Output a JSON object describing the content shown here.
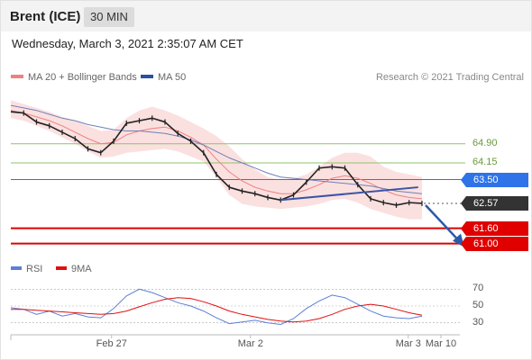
{
  "header": {
    "symbol": "Brent (ICE)",
    "timeframe": "30 MIN"
  },
  "timestamp": "Wednesday, March 3, 2021 2:35:07 AM CET",
  "legend": {
    "items": [
      {
        "label": "MA 20 + Bollinger Bands",
        "color": "#f08080"
      },
      {
        "label": "MA 50",
        "color": "#2b4f9e"
      }
    ],
    "credit": "Research © 2021 Trading Central"
  },
  "rsi_legend": {
    "items": [
      {
        "label": "RSI",
        "color": "#5b7fd6"
      },
      {
        "label": "9MA",
        "color": "#e01010"
      }
    ]
  },
  "chart_data": [
    {
      "type": "line",
      "name": "price",
      "x": [
        "Feb 26 10:00",
        "Feb 26 12:00",
        "Feb 26 14:00",
        "Feb 26 16:00",
        "Feb 26 18:00",
        "Feb 26 20:00",
        "Feb 26 22:00",
        "Feb 27",
        "Feb 27 02:00",
        "Feb 27 04:00",
        "Feb 27 06:00",
        "Feb 27 08:00",
        "Feb 27 10:00",
        "Feb 27 12:00",
        "Feb 27 14:00",
        "Feb 27 16:00",
        "Feb 27 18:00",
        "Feb 27 20:00",
        "Feb 27 22:00",
        "Mar 2",
        "Mar 2 02:00",
        "Mar 2 04:00",
        "Mar 2 06:00",
        "Mar 2 08:00",
        "Mar 2 10:00",
        "Mar 2 12:00",
        "Mar 2 14:00",
        "Mar 2 16:00",
        "Mar 2 18:00",
        "Mar 2 20:00",
        "Mar 2 22:00",
        "Mar 3",
        "Mar 3 02:00"
      ],
      "series": [
        {
          "name": "Price",
          "values": [
            66.15,
            66.1,
            65.75,
            65.6,
            65.35,
            65.1,
            64.7,
            64.55,
            65.0,
            65.7,
            65.8,
            65.9,
            65.75,
            65.3,
            65.0,
            64.55,
            63.7,
            63.2,
            63.05,
            62.95,
            62.8,
            62.7,
            62.9,
            63.4,
            63.95,
            64.0,
            63.95,
            63.3,
            62.75,
            62.6,
            62.5,
            62.6,
            62.57
          ]
        },
        {
          "name": "MA 20",
          "values": [
            66.2,
            66.1,
            65.95,
            65.8,
            65.6,
            65.35,
            65.1,
            64.9,
            64.95,
            65.25,
            65.4,
            65.5,
            65.55,
            65.4,
            65.15,
            64.85,
            64.3,
            63.8,
            63.45,
            63.2,
            63.05,
            62.95,
            62.95,
            63.1,
            63.3,
            63.55,
            63.65,
            63.55,
            63.35,
            63.1,
            62.9,
            62.8,
            62.75
          ]
        },
        {
          "name": "MA 50",
          "values": [
            66.4,
            66.3,
            66.2,
            66.05,
            65.9,
            65.8,
            65.65,
            65.55,
            65.45,
            65.4,
            65.4,
            65.35,
            65.3,
            65.2,
            65.05,
            64.85,
            64.6,
            64.35,
            64.15,
            63.95,
            63.75,
            63.6,
            63.55,
            63.5,
            63.45,
            63.4,
            63.35,
            63.3,
            63.25,
            63.15,
            63.05,
            63.0,
            62.95
          ]
        }
      ],
      "bollinger": {
        "upper": [
          66.6,
          66.45,
          66.3,
          66.15,
          65.95,
          65.8,
          65.6,
          65.4,
          65.45,
          65.9,
          66.2,
          66.35,
          66.2,
          66.0,
          65.75,
          65.5,
          65.2,
          64.8,
          64.3,
          63.9,
          63.6,
          63.5,
          63.55,
          63.7,
          64.0,
          64.35,
          64.55,
          64.55,
          64.4,
          64.0,
          63.8,
          63.7,
          63.6
        ],
        "lower": [
          65.9,
          65.8,
          65.6,
          65.4,
          65.15,
          64.9,
          64.6,
          64.35,
          64.4,
          64.55,
          64.6,
          64.65,
          64.7,
          64.6,
          64.4,
          64.2,
          63.6,
          62.9,
          62.55,
          62.45,
          62.4,
          62.35,
          62.4,
          62.45,
          62.55,
          62.7,
          62.75,
          62.6,
          62.35,
          62.2,
          62.05,
          61.95,
          61.95
        ]
      },
      "levels": [
        {
          "value": 64.9,
          "label": "64.90",
          "kind": "resistance-minor",
          "color": "#8cc36a"
        },
        {
          "value": 64.15,
          "label": "64.15",
          "kind": "resistance-minor",
          "color": "#8cc36a"
        },
        {
          "value": 63.5,
          "label": "63.50",
          "kind": "pivot",
          "color": "#2e73e8"
        },
        {
          "value": 62.57,
          "label": "62.57",
          "kind": "last-price",
          "color": "#333333"
        },
        {
          "value": 61.6,
          "label": "61.60",
          "kind": "support",
          "color": "#e00000"
        },
        {
          "value": 61.0,
          "label": "61.00",
          "kind": "support",
          "color": "#e00000"
        }
      ],
      "trendline": {
        "from": {
          "x": "Mar 2 04:00",
          "y": 62.7
        },
        "to": {
          "x": "Mar 3",
          "y": 63.2
        }
      },
      "forecast_arrow": {
        "from": 62.57,
        "to": 61.0
      },
      "ylim": [
        60.6,
        67.0
      ]
    },
    {
      "type": "line",
      "name": "rsi",
      "ylim": [
        20,
        80
      ],
      "yticks": [
        30,
        50,
        70
      ],
      "series": [
        {
          "name": "RSI",
          "values": [
            48,
            46,
            40,
            44,
            38,
            41,
            37,
            36,
            47,
            62,
            70,
            66,
            60,
            54,
            50,
            44,
            36,
            29,
            31,
            33,
            30,
            28,
            35,
            47,
            56,
            63,
            60,
            52,
            44,
            38,
            36,
            35,
            38
          ]
        },
        {
          "name": "9MA",
          "values": [
            46,
            46,
            45,
            44,
            43,
            42,
            41,
            40,
            41,
            44,
            49,
            54,
            58,
            60,
            59,
            55,
            50,
            44,
            40,
            37,
            34,
            32,
            31,
            32,
            35,
            40,
            46,
            50,
            52,
            50,
            46,
            42,
            39
          ]
        }
      ]
    }
  ],
  "x_axis": {
    "ticks": [
      "Feb 27",
      "Mar 2",
      "Mar 3",
      "Mar 10"
    ]
  }
}
